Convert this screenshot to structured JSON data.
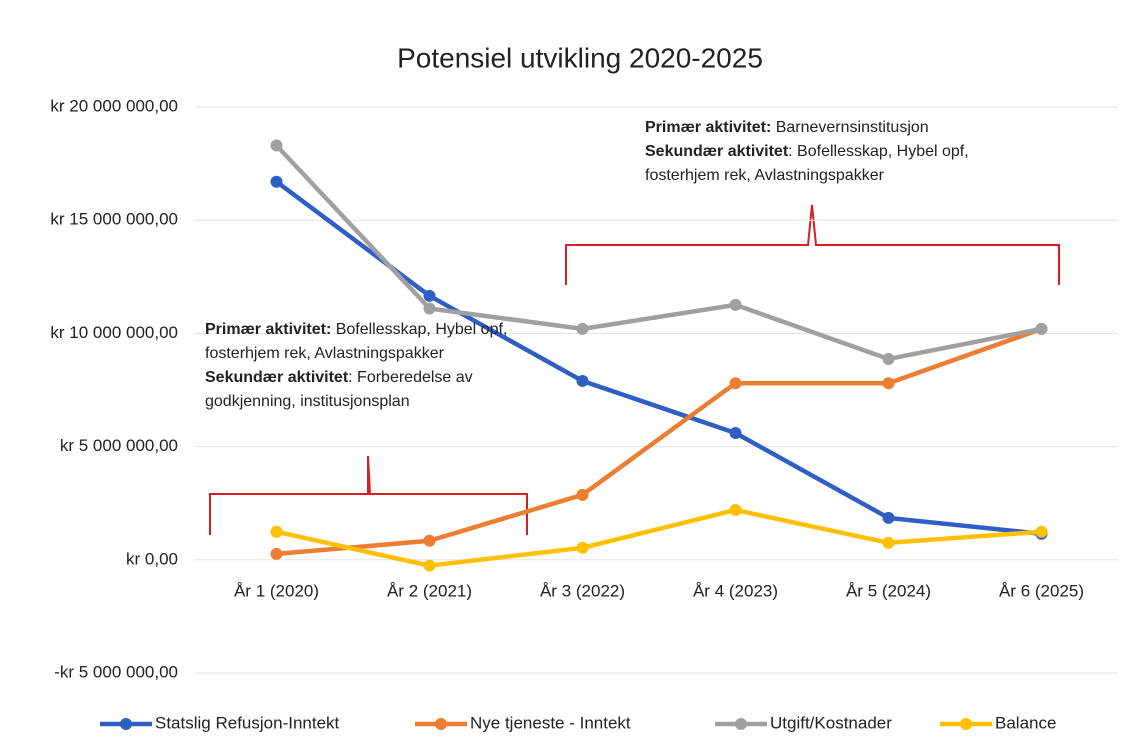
{
  "chart_data": {
    "type": "line",
    "title": "Potensiel utvikling 2020-2025",
    "categories": [
      "År 1 (2020)",
      "År 2 (2021)",
      "År 3 (2022)",
      "År 4 (2023)",
      "År 5 (2024)",
      "År 6 (2025)"
    ],
    "series": [
      {
        "name": "Statslig Refusjon-Inntekt",
        "color": "#2f5fc4",
        "values": [
          16700000,
          11660000,
          7900000,
          5600000,
          1850000,
          1150000
        ]
      },
      {
        "name": "Nye tjeneste - Inntekt",
        "color": "#ed7d31",
        "values": [
          260000,
          840000,
          2870000,
          7800000,
          7800000,
          10200000
        ]
      },
      {
        "name": "Utgift/Kostnader",
        "color": "#a0a0a0",
        "values": [
          18300000,
          11100000,
          10200000,
          11260000,
          8870000,
          10200000
        ]
      },
      {
        "name": "Balance",
        "color": "#ffc000",
        "values": [
          1240000,
          -260000,
          530000,
          2200000,
          750000,
          1240000
        ]
      }
    ],
    "ylim": [
      -5000000,
      20000000
    ],
    "yticks": [
      {
        "value": -5000000,
        "label": "-kr 5 000 000,00"
      },
      {
        "value": 0,
        "label": "kr 0,00"
      },
      {
        "value": 5000000,
        "label": "kr 5 000 000,00"
      },
      {
        "value": 10000000,
        "label": "kr 10 000 000,00"
      },
      {
        "value": 15000000,
        "label": "kr 15 000 000,00"
      },
      {
        "value": 20000000,
        "label": "kr 20 000 000,00"
      }
    ],
    "grid": true,
    "legend": "bottom",
    "annotations": [
      {
        "primary_label": "Primær aktivitet:",
        "primary": " Bofellesskap, Hybel opf, fosterhjem rek, Avlastningspakker",
        "secondary_label": "Sekundær aktivitet",
        "secondary": ": Forberedelse av godkjenning, institusjonsplan"
      },
      {
        "primary_label": "Primær aktivitet:",
        "primary": " Barnevernsinstitusjon",
        "secondary_label": "Sekundær aktivitet",
        "secondary": ": Bofellesskap, Hybel opf, fosterhjem rek, Avlastningspakker"
      }
    ]
  }
}
